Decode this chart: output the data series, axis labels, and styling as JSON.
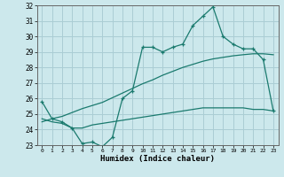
{
  "xlabel": "Humidex (Indice chaleur)",
  "background_color": "#cce8ec",
  "grid_color": "#aacdd4",
  "line_color": "#1a7a6e",
  "xmin": 0,
  "xmax": 23,
  "ymin": 23,
  "ymax": 32,
  "hours": [
    0,
    1,
    2,
    3,
    4,
    5,
    6,
    7,
    8,
    9,
    10,
    11,
    12,
    13,
    14,
    15,
    16,
    17,
    18,
    19,
    20,
    21,
    22,
    23
  ],
  "line1": [
    25.8,
    24.7,
    24.5,
    24.1,
    23.1,
    23.2,
    22.9,
    23.5,
    26.0,
    26.5,
    29.3,
    29.3,
    29.0,
    29.3,
    29.5,
    30.7,
    31.3,
    31.9,
    30.0,
    29.5,
    29.2,
    29.2,
    28.5,
    25.2
  ],
  "line2": [
    24.7,
    24.5,
    24.4,
    24.1,
    24.1,
    24.3,
    24.4,
    24.5,
    24.6,
    24.7,
    24.8,
    24.9,
    25.0,
    25.1,
    25.2,
    25.3,
    25.4,
    25.4,
    25.4,
    25.4,
    25.4,
    25.3,
    25.3,
    25.2
  ],
  "line3": [
    24.5,
    24.7,
    24.85,
    25.1,
    25.35,
    25.55,
    25.75,
    26.05,
    26.35,
    26.65,
    26.95,
    27.2,
    27.5,
    27.75,
    28.0,
    28.2,
    28.4,
    28.55,
    28.65,
    28.75,
    28.82,
    28.88,
    28.88,
    28.82
  ]
}
